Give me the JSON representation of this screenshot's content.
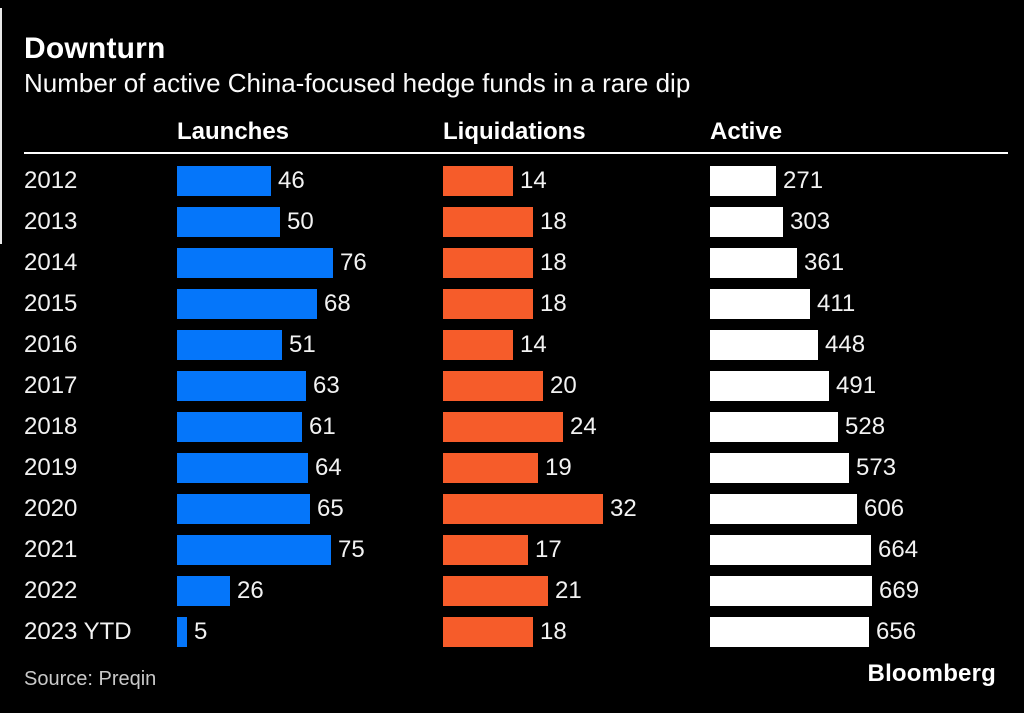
{
  "header": {
    "title": "Downturn",
    "subtitle": "Number of active China-focused hedge funds in a rare dip"
  },
  "footer": {
    "source": "Source: Preqin",
    "brand": "Bloomberg"
  },
  "colors": {
    "background": "#000000",
    "launches_blue": "#0576fa",
    "liquidations_orange": "#f65c2a",
    "active_white": "#ffffff",
    "divider": "#ffffff"
  },
  "chart_data": {
    "type": "bar",
    "orientation": "horizontal",
    "title": "Downturn",
    "subtitle": "Number of active China-focused hedge funds in a rare dip",
    "source": "Source: Preqin",
    "value_labels": true,
    "grid": false,
    "legend_position": "column-headers",
    "categories": [
      "2012",
      "2013",
      "2014",
      "2015",
      "2016",
      "2017",
      "2018",
      "2019",
      "2020",
      "2021",
      "2022",
      "2023 YTD"
    ],
    "series": [
      {
        "name": "Launches",
        "color": "#0576fa",
        "axis_max": 76,
        "values": [
          46,
          50,
          76,
          68,
          51,
          63,
          61,
          64,
          65,
          75,
          26,
          5
        ]
      },
      {
        "name": "Liquidations",
        "color": "#f65c2a",
        "axis_max": 32,
        "values": [
          14,
          18,
          18,
          18,
          14,
          20,
          24,
          19,
          32,
          17,
          21,
          18
        ]
      },
      {
        "name": "Active",
        "color": "#ffffff",
        "axis_max": 669,
        "values": [
          271,
          303,
          361,
          411,
          448,
          491,
          528,
          573,
          606,
          664,
          669,
          656
        ]
      }
    ]
  }
}
